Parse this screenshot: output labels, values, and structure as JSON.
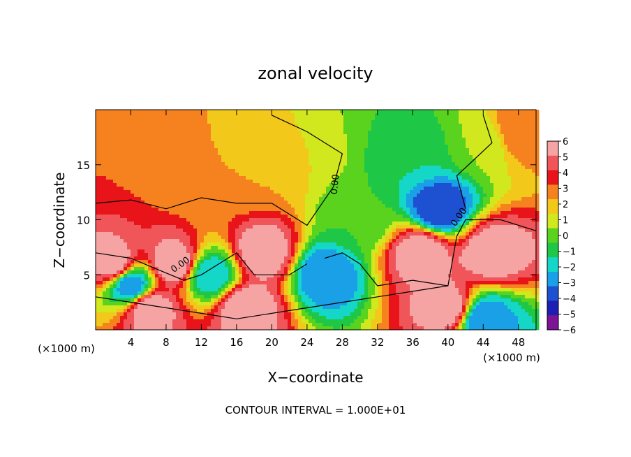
{
  "chart_data": {
    "type": "heatmap",
    "title": "zonal velocity",
    "xlabel": "X−coordinate",
    "ylabel": "Z−coordinate",
    "x_unit_left": "(×1000 m)",
    "x_unit_right": "(×1000 m)",
    "footer": "CONTOUR INTERVAL = 1.000E+01",
    "xlim": [
      0,
      50
    ],
    "ylim": [
      0,
      20
    ],
    "x_ticks": [
      4,
      8,
      12,
      16,
      20,
      24,
      28,
      32,
      36,
      40,
      44,
      48
    ],
    "y_ticks": [
      5,
      10,
      15
    ],
    "contour_label": "0.00",
    "colorbar": {
      "levels": [
        6,
        5,
        4,
        3,
        2,
        1,
        0,
        -1,
        -2,
        -3,
        -4,
        -5,
        -6
      ],
      "colors": [
        "#f6a3a3",
        "#f0555a",
        "#e8141a",
        "#f5821f",
        "#f2c81a",
        "#d2e81e",
        "#5ad31e",
        "#1ec846",
        "#14d7c8",
        "#1aa0e6",
        "#1e50d2",
        "#1e1eb4",
        "#7d1496"
      ]
    },
    "blobs": [
      {
        "x": 2,
        "z": 17,
        "v": 3
      },
      {
        "x": 12,
        "z": 14,
        "v": 2
      },
      {
        "x": 18,
        "z": 14,
        "v": 2
      },
      {
        "x": 24,
        "z": 17,
        "v": 1
      },
      {
        "x": 33,
        "z": 18,
        "v": -1
      },
      {
        "x": 36,
        "z": 16,
        "v": -2
      },
      {
        "x": 39,
        "z": 11,
        "v": -5
      },
      {
        "x": 44,
        "z": 17,
        "v": 0
      },
      {
        "x": 48,
        "z": 18,
        "v": 3
      },
      {
        "x": 30,
        "z": 10,
        "v": -1
      },
      {
        "x": 2,
        "z": 6,
        "v": 6
      },
      {
        "x": 9,
        "z": 6,
        "v": 6
      },
      {
        "x": 19,
        "z": 7,
        "v": 6
      },
      {
        "x": 45,
        "z": 7,
        "v": 6
      },
      {
        "x": 37,
        "z": 7,
        "v": 6
      },
      {
        "x": 6,
        "z": 2,
        "v": 6
      },
      {
        "x": 17,
        "z": 2,
        "v": 6
      },
      {
        "x": 40,
        "z": 2,
        "v": 6
      },
      {
        "x": 26,
        "z": 5,
        "v": -4
      },
      {
        "x": 4,
        "z": 4,
        "v": -4
      },
      {
        "x": 44,
        "z": 1,
        "v": -4
      },
      {
        "x": 13,
        "z": 5,
        "v": -3
      }
    ]
  }
}
